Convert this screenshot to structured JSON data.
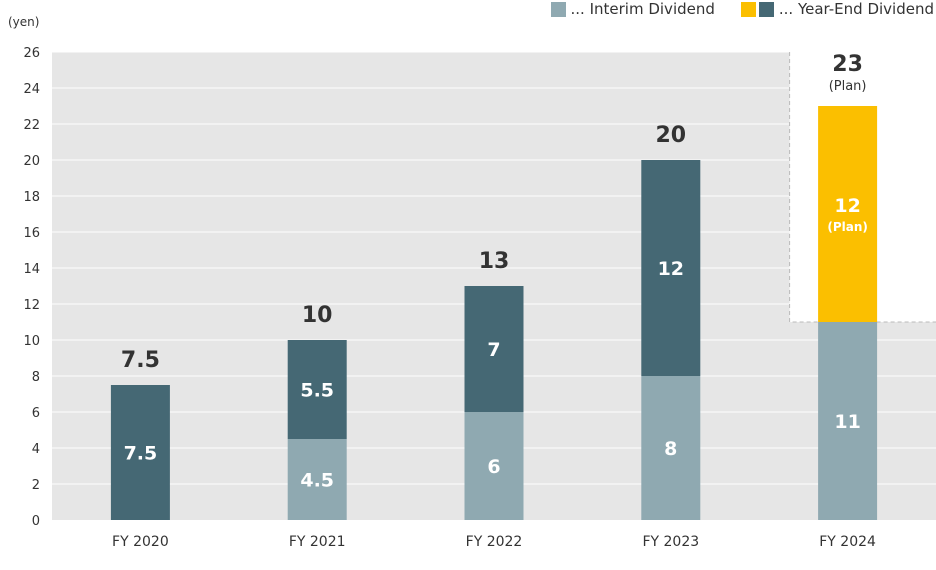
{
  "chart_data": {
    "type": "bar",
    "stacked": true,
    "ylabel": "(yen)",
    "ylim": [
      0,
      26
    ],
    "yticks": [
      0,
      2,
      4,
      6,
      8,
      10,
      12,
      14,
      16,
      18,
      20,
      22,
      24,
      26
    ],
    "categories": [
      "FY 2020",
      "FY 2021",
      "FY 2022",
      "FY 2023",
      "FY 2024"
    ],
    "series": [
      {
        "name": "Interim Dividend",
        "values": [
          0,
          4.5,
          6,
          8,
          11
        ],
        "color": "#8fa9b1"
      },
      {
        "name": "Year-End Dividend",
        "values": [
          7.5,
          5.5,
          7,
          12,
          12
        ],
        "color": "#456874"
      }
    ],
    "segment_labels": {
      "interim": [
        "",
        "4.5",
        "6",
        "8",
        "11"
      ],
      "year_end": [
        "7.5",
        "5.5",
        "7",
        "12",
        "12"
      ]
    },
    "totals": [
      "7.5",
      "10",
      "13",
      "20",
      "23"
    ],
    "plan": {
      "category": "FY 2024",
      "total_note": "(Plan)",
      "year_end_note": "(Plan)",
      "year_end_color": "#fbbf00"
    },
    "grid": true,
    "legend": {
      "position": "top-right",
      "interim_label": "... Interim Dividend",
      "year_end_label": "... Year-End Dividend"
    }
  },
  "colors": {
    "plot_bg": "#e6e6e6",
    "grid": "#ffffff",
    "interim": "#8fa9b1",
    "year_end": "#456874",
    "plan": "#fbbf00"
  }
}
